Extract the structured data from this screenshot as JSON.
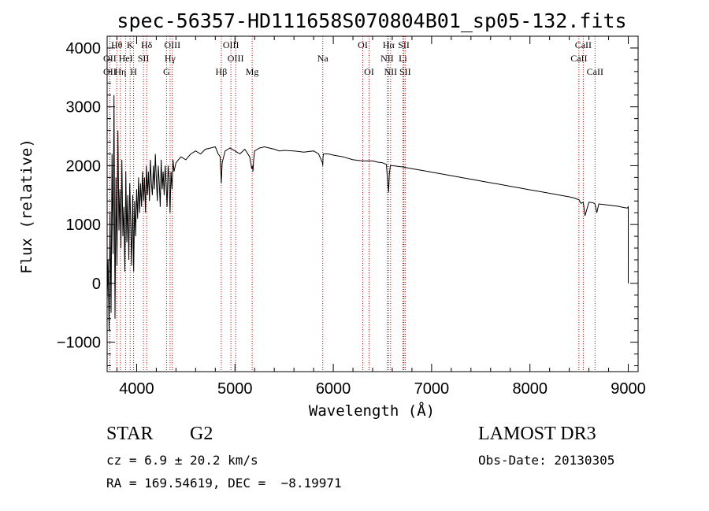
{
  "chart_data": {
    "type": "line",
    "title": "spec-56357-HD111658S070804B01_sp05-132.fits",
    "xlabel": "Wavelength (Å)",
    "ylabel": "Flux (relative)",
    "xlim": [
      3700,
      9100
    ],
    "ylim": [
      -1500,
      4200
    ],
    "x_ticks": [
      4000,
      5000,
      6000,
      7000,
      8000,
      9000
    ],
    "x_tick_labels": [
      "4000",
      "5000",
      "6000",
      "7000",
      "8000",
      "9000"
    ],
    "y_ticks": [
      -1000,
      0,
      1000,
      2000,
      3000,
      4000
    ],
    "y_tick_labels": [
      "−1000",
      "0",
      "1000",
      "2000",
      "3000",
      "4000"
    ],
    "series": [
      {
        "name": "flux",
        "x": [
          3700,
          3710,
          3720,
          3730,
          3740,
          3750,
          3760,
          3770,
          3780,
          3790,
          3800,
          3810,
          3820,
          3830,
          3840,
          3850,
          3860,
          3870,
          3880,
          3890,
          3900,
          3910,
          3920,
          3930,
          3940,
          3950,
          3960,
          3970,
          3980,
          3990,
          4000,
          4010,
          4020,
          4030,
          4040,
          4050,
          4060,
          4070,
          4080,
          4090,
          4100,
          4110,
          4120,
          4130,
          4140,
          4150,
          4160,
          4170,
          4180,
          4190,
          4200,
          4210,
          4220,
          4230,
          4240,
          4250,
          4260,
          4270,
          4280,
          4290,
          4300,
          4310,
          4320,
          4330,
          4340,
          4350,
          4360,
          4370,
          4380,
          4400,
          4450,
          4500,
          4550,
          4600,
          4650,
          4700,
          4750,
          4800,
          4830,
          4850,
          4861,
          4870,
          4900,
          4950,
          5000,
          5050,
          5100,
          5150,
          5170,
          5180,
          5183,
          5190,
          5200,
          5250,
          5300,
          5350,
          5400,
          5450,
          5500,
          5600,
          5700,
          5800,
          5850,
          5890,
          5893,
          5896,
          5900,
          5950,
          6000,
          6100,
          6200,
          6300,
          6400,
          6450,
          6500,
          6540,
          6555,
          6563,
          6570,
          6580,
          6600,
          6700,
          6800,
          6900,
          7000,
          7100,
          7200,
          7300,
          7400,
          7500,
          7600,
          7700,
          7800,
          7900,
          8000,
          8100,
          8200,
          8300,
          8400,
          8450,
          8498,
          8520,
          8542,
          8560,
          8600,
          8640,
          8662,
          8680,
          8700,
          8750,
          8800,
          8850,
          8900,
          8950,
          8990,
          9000,
          9000
        ],
        "y": [
          -300,
          400,
          -800,
          1200,
          -500,
          2200,
          500,
          3200,
          -600,
          1800,
          300,
          2600,
          900,
          1600,
          600,
          2100,
          800,
          1300,
          200,
          1900,
          700,
          1500,
          400,
          1700,
          1000,
          300,
          1500,
          200,
          1400,
          800,
          1600,
          1100,
          1800,
          1200,
          1700,
          1300,
          1900,
          1400,
          1800,
          1200,
          2000,
          1500,
          1900,
          1400,
          2100,
          1700,
          1500,
          2000,
          1600,
          2200,
          1800,
          1400,
          2000,
          1700,
          1300,
          2100,
          1600,
          1900,
          1500,
          2000,
          1700,
          1300,
          2000,
          1800,
          1200,
          1900,
          1600,
          2100,
          1900,
          2050,
          2150,
          2100,
          2200,
          2250,
          2200,
          2280,
          2300,
          2320,
          2200,
          2150,
          1700,
          2050,
          2250,
          2300,
          2250,
          2200,
          2280,
          2150,
          1950,
          2000,
          1900,
          2100,
          2250,
          2300,
          2320,
          2300,
          2280,
          2250,
          2260,
          2250,
          2230,
          2250,
          2200,
          2050,
          2000,
          2150,
          2200,
          2200,
          2180,
          2150,
          2100,
          2080,
          2080,
          2060,
          2050,
          2020,
          1700,
          1550,
          1850,
          2000,
          2000,
          1980,
          1950,
          1920,
          1890,
          1860,
          1830,
          1800,
          1770,
          1740,
          1710,
          1680,
          1650,
          1620,
          1590,
          1560,
          1530,
          1500,
          1470,
          1450,
          1420,
          1360,
          1380,
          1150,
          1380,
          1370,
          1350,
          1200,
          1350,
          1340,
          1330,
          1320,
          1310,
          1290,
          1280,
          1300,
          0
        ]
      }
    ],
    "line_markers": [
      {
        "name": "Hθ",
        "x": 3798,
        "row": 1
      },
      {
        "name": "K",
        "x": 3934,
        "row": 1
      },
      {
        "name": "Hδ",
        "x": 4102,
        "row": 1
      },
      {
        "name": "OIII",
        "x": 4363,
        "row": 1
      },
      {
        "name": "OIII",
        "x": 4959,
        "row": 1
      },
      {
        "name": "OI",
        "x": 6300,
        "row": 1
      },
      {
        "name": "Hα",
        "x": 6563,
        "row": 1
      },
      {
        "name": "SII",
        "x": 6717,
        "row": 1
      },
      {
        "name": "CaII",
        "x": 8542,
        "row": 1
      },
      {
        "name": "OII",
        "x": 3727,
        "row": 2
      },
      {
        "name": "HeI",
        "x": 3889,
        "row": 2
      },
      {
        "name": "SII",
        "x": 4069,
        "row": 2
      },
      {
        "name": "Hγ",
        "x": 4340,
        "row": 2
      },
      {
        "name": "OIII",
        "x": 5007,
        "row": 2
      },
      {
        "name": "Na",
        "x": 5893,
        "row": 2
      },
      {
        "name": "NII",
        "x": 6548,
        "row": 2
      },
      {
        "name": "Li",
        "x": 6708,
        "row": 2
      },
      {
        "name": "CaII",
        "x": 8498,
        "row": 2
      },
      {
        "name": "OII",
        "x": 3727,
        "row": 3
      },
      {
        "name": "Hη",
        "x": 3835,
        "row": 3
      },
      {
        "name": "H",
        "x": 3969,
        "row": 3
      },
      {
        "name": "G",
        "x": 4304,
        "row": 3
      },
      {
        "name": "Hβ",
        "x": 4861,
        "row": 3
      },
      {
        "name": "Mg",
        "x": 5175,
        "row": 3
      },
      {
        "name": "OI",
        "x": 6364,
        "row": 3
      },
      {
        "name": "NII",
        "x": 6583,
        "row": 3
      },
      {
        "name": "SII",
        "x": 6731,
        "row": 3
      },
      {
        "name": "CaII",
        "x": 8662,
        "row": 3
      }
    ],
    "marker_color": "#cc0000",
    "line_color": "#000000"
  },
  "info": {
    "object_type": "STAR",
    "subclass": "G2",
    "redshift": "cz = 6.9 ± 20.2 km/s",
    "coordinates": "RA = 169.54619, DEC =  −8.19971",
    "survey": "LAMOST DR3",
    "obs_date": "Obs-Date: 20130305"
  }
}
